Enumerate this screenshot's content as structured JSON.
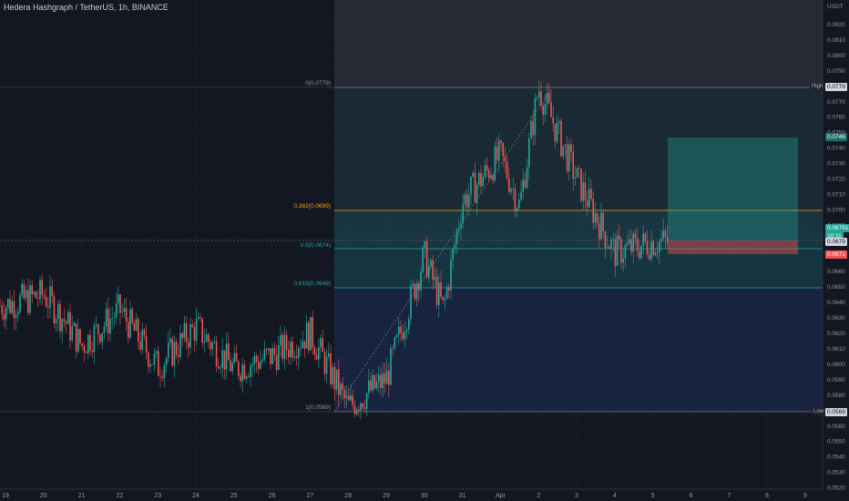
{
  "header": {
    "title": "Hedera Hashgraph / TetherUS, 1h, BINANCE",
    "currency": "USDT"
  },
  "colors": {
    "background": "#131722",
    "up": "#26a69a",
    "down": "#ef5350",
    "grid": "#1e222d",
    "fib_382": "#f7a21b",
    "fib_teal": "#26a69a",
    "fib_box_blue": "#1e3a5f"
  },
  "fib": {
    "level_0": "0(0.0779)",
    "level_382": "0.382(0.0699)",
    "level_05": "0.5(0.0674)",
    "level_618": "0.618(0.0649)",
    "level_1": "1(0.0569)",
    "values": {
      "level_0": 0.0779,
      "level_382": 0.0699,
      "level_05": 0.0674,
      "level_618": 0.0649,
      "level_1": 0.0569
    }
  },
  "markers": {
    "high_label": "High",
    "high_value": "0.0779",
    "low_label": "Low",
    "low_value": "0.0569",
    "target_value": "0.0746",
    "current_value": "0.06791",
    "countdown": "10:11",
    "entry_value": "0.0679",
    "stop_value": "0.0671"
  },
  "chart_data": {
    "type": "candlestick",
    "title": "Hedera Hashgraph / TetherUS, 1h, BINANCE",
    "y_axis_label": "USDT",
    "ylim": [
      0.0513,
      0.0832
    ],
    "y_ticks": [
      "0.0820",
      "0.0810",
      "0.0800",
      "0.0790",
      "0.0780",
      "0.0770",
      "0.0760",
      "0.0750",
      "0.0740",
      "0.0730",
      "0.0720",
      "0.0710",
      "0.0700",
      "0.0690",
      "0.0680",
      "0.0670",
      "0.0660",
      "0.0650",
      "0.0640",
      "0.0630",
      "0.0620",
      "0.0610",
      "0.0600",
      "0.0590",
      "0.0580",
      "0.0570",
      "0.0560",
      "0.0550",
      "0.0540",
      "0.0530",
      "0.0520"
    ],
    "x_ticks": [
      "19",
      "20",
      "21",
      "22",
      "23",
      "24",
      "25",
      "26",
      "27",
      "28",
      "29",
      "30",
      "31",
      "Apr",
      "2",
      "3",
      "4",
      "5",
      "6",
      "7",
      "8",
      "9"
    ],
    "path_points": [
      {
        "day": "19",
        "price": 0.0638
      },
      {
        "day": "20",
        "price": 0.0645
      },
      {
        "day": "20",
        "price": 0.063
      },
      {
        "day": "21",
        "price": 0.0612
      },
      {
        "day": "22",
        "price": 0.0635
      },
      {
        "day": "23",
        "price": 0.0598
      },
      {
        "day": "24",
        "price": 0.0624
      },
      {
        "day": "25",
        "price": 0.0597
      },
      {
        "day": "26",
        "price": 0.0605
      },
      {
        "day": "27",
        "price": 0.062
      },
      {
        "day": "28",
        "price": 0.0572
      },
      {
        "day": "29",
        "price": 0.059
      },
      {
        "day": "30",
        "price": 0.067
      },
      {
        "day": "30",
        "price": 0.0635
      },
      {
        "day": "31",
        "price": 0.0705
      },
      {
        "day": "Apr",
        "price": 0.0735
      },
      {
        "day": "Apr",
        "price": 0.0702
      },
      {
        "day": "2",
        "price": 0.0779
      },
      {
        "day": "3",
        "price": 0.072
      },
      {
        "day": "4",
        "price": 0.0672
      },
      {
        "day": "5",
        "price": 0.0679
      }
    ],
    "grid": true
  }
}
